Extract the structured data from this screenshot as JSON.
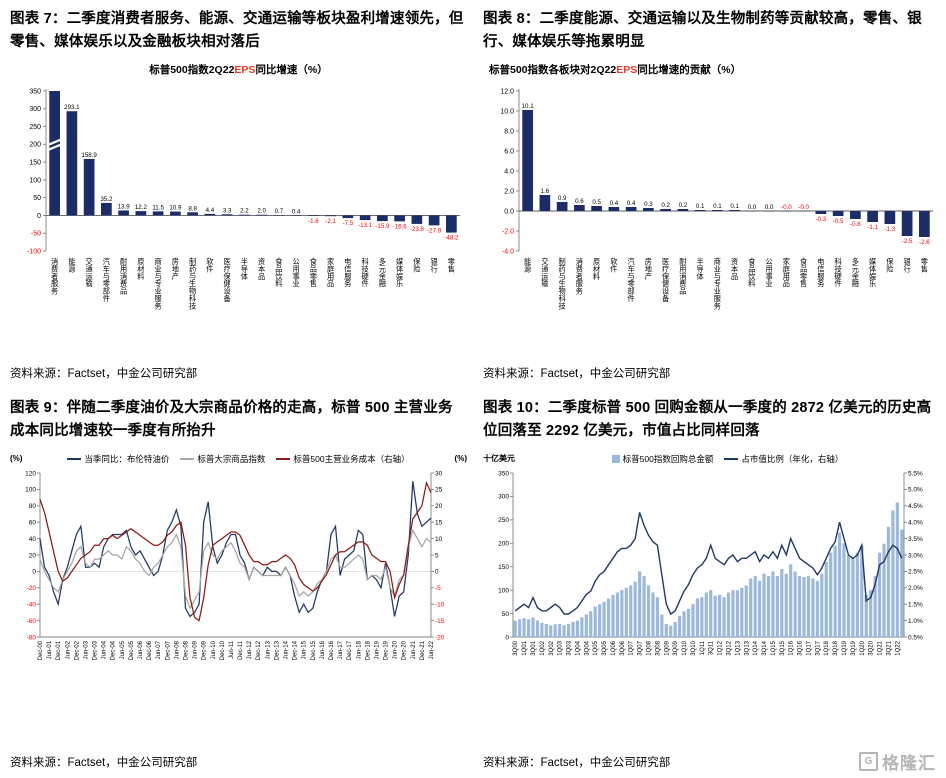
{
  "colors": {
    "bar_navy": "#1b2c66",
    "negative": "#ff0000",
    "eps_red": "#eb3b23",
    "brent": "#1f3864",
    "commodity": "#a6a6a6",
    "cogs": "#8c1a10",
    "buyback_bar": "#9db9da",
    "ratio_line": "#1f3864",
    "watermark_gray": "#b5b5b5"
  },
  "source": {
    "line": "资料来源：Factset，中金公司研究部"
  },
  "watermark": {
    "logo_letter": "G",
    "text": "格隆汇"
  },
  "chart_data": [
    {
      "id": "fig7",
      "type": "bar",
      "figure_title": "图表 7：二季度消费者服务、能源、交通运输等板块盈利增速领先，但零售、媒体娱乐以及金融板块相对落后",
      "subtitle_pre": "标普500指数2Q22",
      "subtitle_red": "EPS",
      "subtitle_post": "同比增速（%）",
      "categories": [
        "消费者服务",
        "能源",
        "交通运输",
        "汽车与零部件",
        "耐用消费品",
        "原材料",
        "商业与专业服务",
        "房地产",
        "制药与生物科技",
        "软件",
        "医疗保健设备",
        "半导体",
        "资本品",
        "食品饮料",
        "公用事业",
        "食品零售",
        "家庭用品",
        "电信服务",
        "科技硬件",
        "多元金融",
        "媒体娱乐",
        "保险",
        "银行",
        "零售"
      ],
      "values": [
        350,
        293.1,
        158.9,
        35.2,
        13.9,
        12.2,
        11.5,
        10.9,
        8.8,
        4.4,
        3.3,
        2.2,
        2.0,
        0.7,
        0.4,
        -1.6,
        -2.1,
        -7.5,
        -13.1,
        -15.9,
        -16.6,
        -23.8,
        -27.9,
        -48.2
      ],
      "bar_labels": [
        "",
        "293.1",
        "158.9",
        "35.2",
        "13.9",
        "12.2",
        "11.5",
        "10.9",
        "8.8",
        "4.4",
        "3.3",
        "2.2",
        "2.0",
        "0.7",
        "0.4",
        "-1.6",
        "-2.1",
        "-7.5",
        "-13.1",
        "-15.9",
        "-16.6",
        "-23.8",
        "-27.9",
        "-48.2"
      ],
      "ylim": [
        -100,
        350
      ],
      "yticks": [
        "350",
        "300",
        "250",
        "200",
        "150",
        "100",
        "50",
        "0",
        "-50",
        "-100"
      ],
      "axis_break_on_first_bar": true
    },
    {
      "id": "fig8",
      "type": "bar",
      "figure_title": "图表 8：二季度能源、交通运输以及生物制药等贡献较高，零售、银行、媒体娱乐等拖累明显",
      "subtitle_pre": "标普500指数各板块对2Q22",
      "subtitle_red": "EPS",
      "subtitle_post": "同比增速的贡献（%）",
      "categories": [
        "能源",
        "交通运输",
        "制药与生物科技",
        "消费者服务",
        "原材料",
        "软件",
        "汽车与零部件",
        "房地产",
        "医疗保健设备",
        "耐用消费品",
        "半导体",
        "商业与专业服务",
        "资本品",
        "食品饮料",
        "公用事业",
        "家庭用品",
        "食品零售",
        "电信服务",
        "科技硬件",
        "多元金融",
        "媒体娱乐",
        "保险",
        "银行",
        "零售"
      ],
      "values": [
        10.1,
        1.6,
        0.9,
        0.6,
        0.5,
        0.4,
        0.4,
        0.3,
        0.2,
        0.2,
        0.1,
        0.1,
        0.1,
        0.0,
        0.0,
        -0.0,
        -0.0,
        -0.3,
        -0.5,
        -0.8,
        -1.1,
        -1.3,
        -2.5,
        -2.6
      ],
      "bar_labels": [
        "10.1",
        "1.6",
        "0.9",
        "0.6",
        "0.5",
        "0.4",
        "0.4",
        "0.3",
        "0.2",
        "0.2",
        "0.1",
        "0.1",
        "0.1",
        "0.0",
        "0.0",
        "-0.0",
        "-0.0",
        "-0.3",
        "-0.5",
        "-0.8",
        "-1.1",
        "-1.3",
        "-2.5",
        "-2.6"
      ],
      "ylim": [
        -4,
        12
      ],
      "yticks": [
        "12.0",
        "10.0",
        "8.0",
        "6.0",
        "4.0",
        "2.0",
        "0.0",
        "-2.0",
        "-4.0"
      ],
      "axis_break_on_first_bar": false
    },
    {
      "id": "fig9",
      "type": "line",
      "figure_title": "图表 9：伴随二季度油价及大宗商品价格的走高，标普 500 主营业务成本同比增速较一季度有所抬升",
      "left_unit": "(%)",
      "right_unit": "(%)",
      "left_ylim": [
        -80,
        120
      ],
      "right_ylim": [
        -20,
        30
      ],
      "left_yticks": [
        "120",
        "100",
        "80",
        "60",
        "40",
        "20",
        "0",
        "-20",
        "-40",
        "-60",
        "-80"
      ],
      "right_yticks": [
        "30",
        "25",
        "20",
        "15",
        "10",
        "5",
        "0",
        "-5",
        "-10",
        "-15",
        "-20"
      ],
      "x_labels": [
        "Dec-00",
        "Jun-01",
        "Dec-01",
        "Jun-02",
        "Dec-02",
        "Jun-03",
        "Dec-03",
        "Jun-04",
        "Dec-04",
        "Jun-05",
        "Dec-05",
        "Jun-06",
        "Dec-06",
        "Jun-07",
        "Dec-07",
        "Jun-08",
        "Dec-08",
        "Jun-09",
        "Dec-09",
        "Jun-10",
        "Dec-10",
        "Jun-11",
        "Dec-11",
        "Jun-12",
        "Dec-12",
        "Jun-13",
        "Dec-13",
        "Jun-14",
        "Dec-14",
        "Jun-15",
        "Dec-15",
        "Jun-16",
        "Dec-16",
        "Jun-17",
        "Dec-17",
        "Jun-18",
        "Dec-18",
        "Jun-19",
        "Dec-19",
        "Jun-20",
        "Dec-20",
        "Jun-21",
        "Dec-21",
        "Jun-22"
      ],
      "series": [
        {
          "name": "当季同比：布伦特油价",
          "axis": "left",
          "color_key": "brent",
          "values": [
            40,
            5,
            -5,
            -25,
            -40,
            -10,
            5,
            25,
            45,
            55,
            5,
            5,
            10,
            5,
            30,
            40,
            45,
            45,
            45,
            50,
            30,
            20,
            25,
            15,
            5,
            -5,
            0,
            20,
            50,
            60,
            75,
            55,
            -45,
            -55,
            -50,
            -40,
            60,
            85,
            30,
            10,
            20,
            35,
            45,
            45,
            20,
            10,
            -10,
            5,
            0,
            -5,
            5,
            0,
            0,
            -5,
            5,
            -5,
            -30,
            -50,
            -40,
            -50,
            -45,
            -25,
            -10,
            0,
            45,
            55,
            -5,
            15,
            20,
            25,
            50,
            45,
            -10,
            -5,
            -10,
            -20,
            10,
            -20,
            -55,
            -30,
            -25,
            20,
            110,
            70,
            55,
            60,
            65
          ]
        },
        {
          "name": "标普大宗商品指数",
          "axis": "left",
          "color_key": "commodity",
          "values": [
            15,
            0,
            -10,
            -20,
            -25,
            -10,
            0,
            10,
            25,
            30,
            10,
            5,
            15,
            15,
            20,
            25,
            20,
            20,
            15,
            30,
            25,
            15,
            10,
            0,
            -5,
            5,
            10,
            20,
            30,
            35,
            45,
            30,
            -30,
            -45,
            -35,
            -25,
            25,
            35,
            20,
            15,
            25,
            30,
            35,
            25,
            10,
            5,
            -10,
            5,
            0,
            -5,
            -5,
            -5,
            -5,
            -5,
            5,
            -5,
            -15,
            -30,
            -25,
            -30,
            -25,
            -15,
            -10,
            0,
            15,
            20,
            5,
            5,
            10,
            15,
            20,
            15,
            -10,
            -5,
            -5,
            -10,
            5,
            -20,
            -30,
            -10,
            -5,
            30,
            50,
            40,
            30,
            40,
            35
          ]
        },
        {
          "name": "标普500主营业务成本（右轴）",
          "axis": "right",
          "color_key": "cogs",
          "values": [
            22,
            18,
            12,
            6,
            0,
            -3,
            -2,
            0,
            2,
            4,
            5,
            6,
            8,
            8,
            10,
            10,
            11,
            10,
            11,
            12,
            13,
            12,
            11,
            10,
            9,
            8,
            8,
            9,
            11,
            12,
            14,
            15,
            8,
            -8,
            -14,
            -15,
            -8,
            2,
            8,
            9,
            10,
            11,
            12,
            12,
            11,
            8,
            5,
            3,
            3,
            2,
            2,
            3,
            3,
            4,
            5,
            4,
            2,
            -2,
            -4,
            -5,
            -6,
            -5,
            -3,
            -1,
            2,
            5,
            6,
            6,
            7,
            8,
            9,
            9,
            8,
            5,
            4,
            3,
            3,
            0,
            -8,
            -4,
            -1,
            8,
            16,
            18,
            20,
            27,
            24
          ]
        }
      ]
    },
    {
      "id": "fig10",
      "type": "bar+line",
      "figure_title": "图表 10：二季度标普 500 回购金额从一季度的 2872 亿美元的历史高位回落至 2292 亿美元，市值占比同样回落",
      "left_unit": "十亿美元",
      "left_ylim": [
        0,
        350
      ],
      "right_ylim": [
        0.5,
        5.5
      ],
      "left_yticks": [
        "350",
        "300",
        "250",
        "200",
        "150",
        "100",
        "50",
        "0"
      ],
      "right_yticks": [
        "5.5%",
        "5.0%",
        "4.5%",
        "4.0%",
        "3.5%",
        "3.0%",
        "2.5%",
        "2.0%",
        "1.5%",
        "1.0%",
        "0.5%"
      ],
      "x_labels": [
        "3Q00",
        "1Q01",
        "3Q01",
        "1Q02",
        "3Q02",
        "1Q03",
        "3Q03",
        "1Q04",
        "3Q04",
        "1Q05",
        "3Q05",
        "1Q06",
        "3Q06",
        "1Q07",
        "3Q07",
        "1Q08",
        "3Q08",
        "1Q09",
        "3Q09",
        "1Q10",
        "3Q10",
        "1Q11",
        "3Q11",
        "1Q12",
        "3Q12",
        "1Q13",
        "3Q13",
        "1Q14",
        "3Q14",
        "1Q15",
        "3Q15",
        "1Q16",
        "3Q16",
        "1Q17",
        "3Q17",
        "1Q18",
        "3Q18",
        "1Q19",
        "3Q19",
        "1Q20",
        "3Q20",
        "1Q21",
        "3Q21",
        "1Q22"
      ],
      "bars": {
        "name": "标普500指数回购总金额",
        "color_key": "buyback_bar",
        "values": [
          35,
          38,
          40,
          38,
          42,
          35,
          30,
          28,
          25,
          27,
          28,
          25,
          28,
          32,
          35,
          42,
          48,
          55,
          65,
          70,
          75,
          82,
          90,
          95,
          100,
          105,
          110,
          118,
          140,
          130,
          110,
          95,
          85,
          48,
          28,
          24,
          32,
          45,
          55,
          60,
          70,
          82,
          85,
          95,
          100,
          88,
          90,
          85,
          95,
          100,
          100,
          105,
          110,
          125,
          130,
          120,
          135,
          130,
          140,
          130,
          145,
          135,
          155,
          140,
          130,
          128,
          130,
          125,
          120,
          135,
          160,
          180,
          195,
          223,
          200,
          175,
          170,
          180,
          195,
          90,
          100,
          130,
          180,
          199,
          235,
          270,
          287.2,
          229.2
        ]
      },
      "line": {
        "name": "占市值比例（年化，右轴）",
        "color_key": "ratio_line",
        "values_percent": [
          1.3,
          1.4,
          1.5,
          1.4,
          1.7,
          1.4,
          1.3,
          1.3,
          1.4,
          1.5,
          1.4,
          1.2,
          1.2,
          1.3,
          1.4,
          1.6,
          1.8,
          1.9,
          2.2,
          2.4,
          2.5,
          2.7,
          2.9,
          3.1,
          3.2,
          3.2,
          3.3,
          3.5,
          4.3,
          3.9,
          3.6,
          3.4,
          3.3,
          2.4,
          1.5,
          1.2,
          1.3,
          1.6,
          1.9,
          2.1,
          2.4,
          2.6,
          2.7,
          2.9,
          3.3,
          2.9,
          2.8,
          2.7,
          2.9,
          3.0,
          2.8,
          2.9,
          2.9,
          3.0,
          3.1,
          2.8,
          3.0,
          2.9,
          3.1,
          2.9,
          3.3,
          3.0,
          3.5,
          3.2,
          2.9,
          2.8,
          2.7,
          2.6,
          2.4,
          2.6,
          2.9,
          3.2,
          3.4,
          4.0,
          3.5,
          3.0,
          2.9,
          3.0,
          3.3,
          1.6,
          1.7,
          2.1,
          2.7,
          2.8,
          3.1,
          3.3,
          3.2,
          2.9
        ]
      }
    }
  ]
}
